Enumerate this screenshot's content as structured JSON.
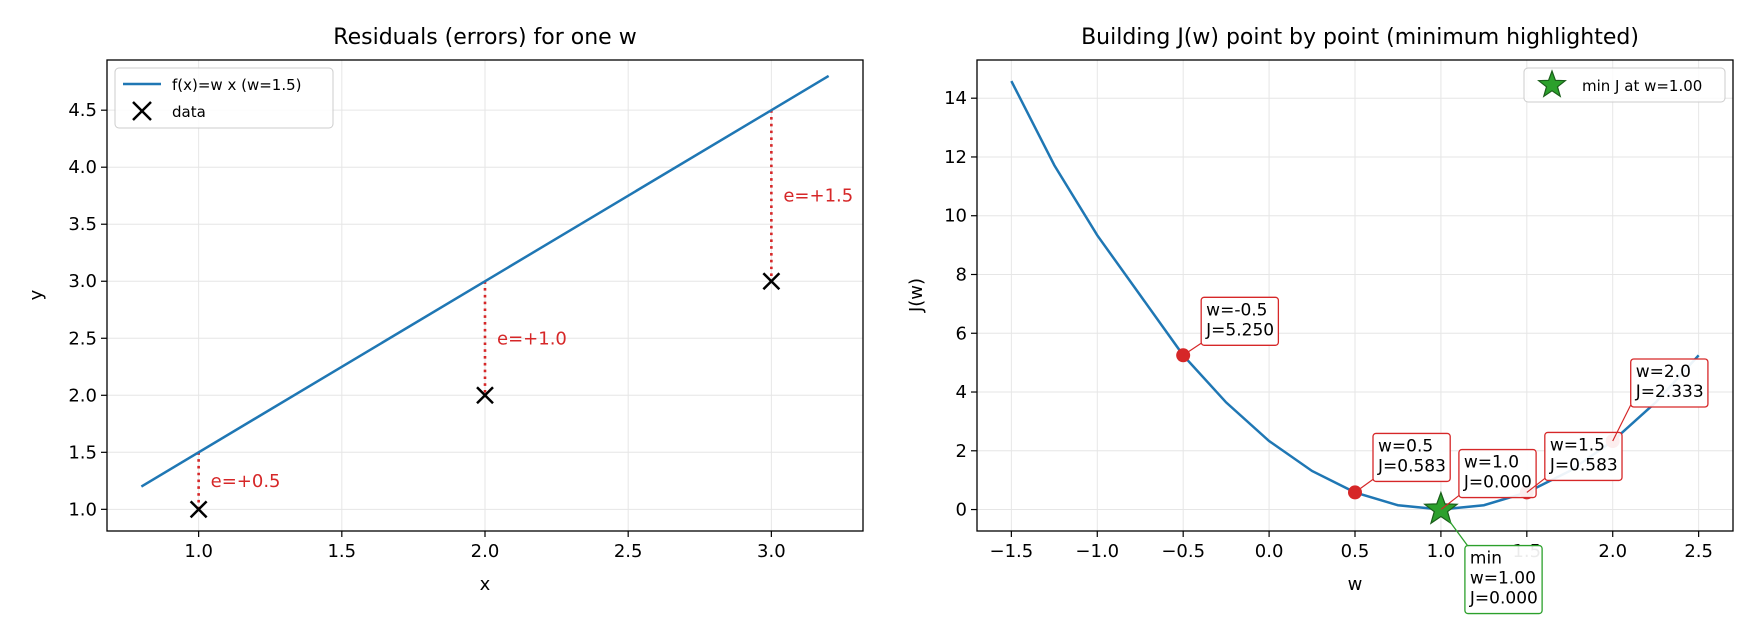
{
  "chart_data": [
    {
      "type": "line",
      "title": "Residuals (errors) for one w",
      "xlabel": "x",
      "ylabel": "y",
      "xlim": [
        0.68,
        3.32
      ],
      "ylim": [
        0.81,
        4.94
      ],
      "xticks": [
        "1.0",
        "1.5",
        "2.0",
        "2.5",
        "3.0"
      ],
      "yticks": [
        "1.0",
        "1.5",
        "2.0",
        "2.5",
        "3.0",
        "3.5",
        "4.0",
        "4.5"
      ],
      "grid": true,
      "legend": "top-left",
      "line": {
        "name": "f(x)=w x (w=1.5)",
        "color": "#1f77b4",
        "x": [
          0.8,
          3.2
        ],
        "y": [
          1.2,
          4.8
        ]
      },
      "points": {
        "name": "data",
        "x": [
          1,
          2,
          3
        ],
        "y": [
          1,
          2,
          3
        ]
      },
      "residuals": [
        {
          "x": 1,
          "y_data": 1,
          "y_pred": 1.5,
          "label": "e=+0.5"
        },
        {
          "x": 2,
          "y_data": 2,
          "y_pred": 3.0,
          "label": "e=+1.0"
        },
        {
          "x": 3,
          "y_data": 3,
          "y_pred": 4.5,
          "label": "e=+1.5"
        }
      ],
      "residual_color": "#d62728"
    },
    {
      "type": "line",
      "title": "Building J(w) point by point (minimum highlighted)",
      "xlabel": "w",
      "ylabel": "J(w)",
      "xlim": [
        -1.7,
        2.7
      ],
      "ylim": [
        -0.73,
        15.3
      ],
      "xticks": [
        "−1.5",
        "−1.0",
        "−0.5",
        "0.0",
        "0.5",
        "1.0",
        "1.5",
        "2.0",
        "2.5"
      ],
      "yticks": [
        "0",
        "2",
        "4",
        "6",
        "8",
        "10",
        "12",
        "14"
      ],
      "grid": true,
      "legend": "top-right",
      "curve": {
        "color": "#1f77b4",
        "x": [
          -1.5,
          -1.25,
          -1.0,
          -0.75,
          -0.5,
          -0.25,
          0.0,
          0.25,
          0.5,
          0.75,
          1.0,
          1.25,
          1.5,
          1.75,
          2.0,
          2.25,
          2.5
        ],
        "y": [
          14.583,
          11.719,
          9.333,
          7.292,
          5.25,
          3.646,
          2.333,
          1.313,
          0.583,
          0.146,
          0.0,
          0.146,
          0.583,
          1.313,
          2.333,
          3.646,
          5.25
        ]
      },
      "points": [
        {
          "w": -0.5,
          "J": 5.25,
          "label": "w=-0.5\nJ=5.250"
        },
        {
          "w": 0.5,
          "J": 0.583,
          "label": "w=0.5\nJ=0.583"
        },
        {
          "w": 1.0,
          "J": 0.0,
          "label": "w=1.0\nJ=0.000"
        },
        {
          "w": 1.5,
          "J": 0.583,
          "label": "w=1.5\nJ=0.583"
        },
        {
          "w": 2.0,
          "J": 2.333,
          "label": "w=2.0\nJ=2.333"
        }
      ],
      "point_color": "#d62728",
      "minimum": {
        "w": 1.0,
        "J": 0.0,
        "name": "min J at w=1.00",
        "label": "min\nw=1.00\nJ=0.000",
        "color": "#2ca02c"
      }
    }
  ]
}
